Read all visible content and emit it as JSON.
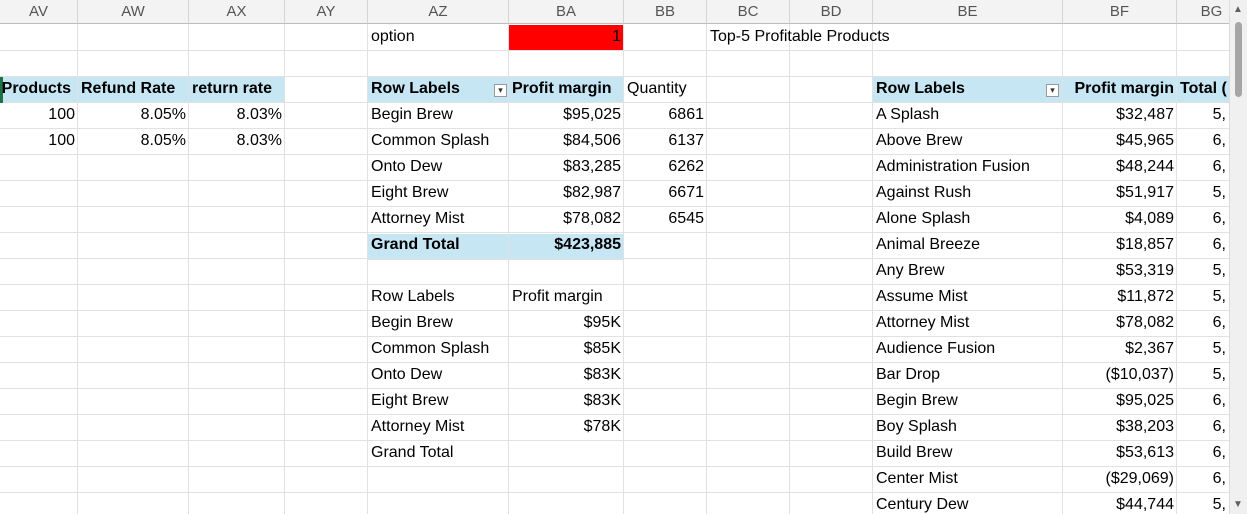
{
  "columns": [
    "AV",
    "AW",
    "AX",
    "AY",
    "AZ",
    "BA",
    "BB",
    "BC",
    "BD",
    "BE",
    "BF",
    "BG"
  ],
  "option": {
    "label": "option",
    "value": "1",
    "fill": "#ff0000"
  },
  "top5_title": "Top-5 Profitable Products",
  "stats_table": {
    "headers": [
      "Products",
      "Refund Rate",
      "return rate"
    ],
    "rows": [
      [
        "100",
        "8.05%",
        "8.03%"
      ],
      [
        "100",
        "8.05%",
        "8.03%"
      ]
    ]
  },
  "pivot1": {
    "headers": [
      "Row Labels",
      "Profit margin",
      "Quantity"
    ],
    "rows": [
      [
        "Begin Brew",
        "$95,025",
        "6861"
      ],
      [
        "Common Splash",
        "$84,506",
        "6137"
      ],
      [
        "Onto Dew",
        "$83,285",
        "6262"
      ],
      [
        "Eight Brew",
        "$82,987",
        "6671"
      ],
      [
        "Attorney Mist",
        "$78,082",
        "6545"
      ]
    ],
    "total": [
      "Grand Total",
      "$423,885"
    ],
    "filter_icon": "filter-dropdown-icon"
  },
  "pivot2": {
    "headers": [
      "Row Labels",
      "Profit margin"
    ],
    "rows": [
      [
        "Begin Brew",
        "$95K"
      ],
      [
        "Common Splash",
        "$85K"
      ],
      [
        "Onto Dew",
        "$83K"
      ],
      [
        "Eight Brew",
        "$83K"
      ],
      [
        "Attorney Mist",
        "$78K"
      ]
    ],
    "total": [
      "Grand Total",
      ""
    ]
  },
  "pivot3": {
    "headers": [
      "Row Labels",
      "Profit margin",
      "Total ("
    ],
    "rows": [
      [
        "A Splash",
        "$32,487",
        "5,"
      ],
      [
        "Above Brew",
        "$45,965",
        "6,"
      ],
      [
        "Administration Fusion",
        "$48,244",
        "6,"
      ],
      [
        "Against Rush",
        "$51,917",
        "5,"
      ],
      [
        "Alone Splash",
        "$4,089",
        "6,"
      ],
      [
        "Animal Breeze",
        "$18,857",
        "6,"
      ],
      [
        "Any Brew",
        "$53,319",
        "5,"
      ],
      [
        "Assume Mist",
        "$11,872",
        "5,"
      ],
      [
        "Attorney Mist",
        "$78,082",
        "6,"
      ],
      [
        "Audience Fusion",
        "$2,367",
        "5,"
      ],
      [
        "Bar Drop",
        "($10,037)",
        "5,"
      ],
      [
        "Begin Brew",
        "$95,025",
        "6,"
      ],
      [
        "Boy Splash",
        "$38,203",
        "6,"
      ],
      [
        "Build Brew",
        "$53,613",
        "6,"
      ],
      [
        "Center Mist",
        "($29,069)",
        "6,"
      ],
      [
        "Century Dew",
        "$44,744",
        "5,"
      ]
    ],
    "dropdown_icon": "dropdown-arrow-icon"
  },
  "header_color": "#c6e6f4"
}
